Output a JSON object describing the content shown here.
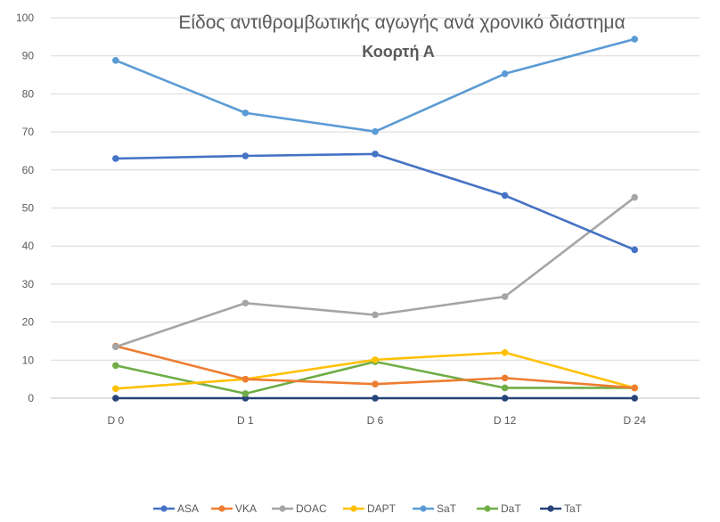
{
  "chart_data": {
    "type": "line",
    "title": "Είδος αντιθρομβωτικής αγωγής ανά χρονικό διάστημα",
    "subtitle": "Κοορτή Α",
    "categories": [
      "D 0",
      "D 1",
      "D 6",
      "D 12",
      "D 24"
    ],
    "ylim": [
      0,
      100
    ],
    "yticks": [
      0,
      10,
      20,
      30,
      40,
      50,
      60,
      70,
      80,
      90,
      100
    ],
    "grid": true,
    "legend": "bottom",
    "series": [
      {
        "name": "ASA",
        "color": "#4472C4",
        "values": [
          63,
          63.7,
          64.2,
          53.3,
          39
        ]
      },
      {
        "name": "VKA",
        "color": "#ED7D31",
        "values": [
          13.7,
          5,
          3.7,
          5.3,
          2.7
        ]
      },
      {
        "name": "DOAC",
        "color": "#A5A5A5",
        "values": [
          13.5,
          25,
          21.9,
          26.7,
          52.8
        ]
      },
      {
        "name": "DAPT",
        "color": "#FFC000",
        "values": [
          2.5,
          5,
          10.1,
          12,
          2.7
        ]
      },
      {
        "name": "SaT",
        "color": "#5B9BD5",
        "values": [
          88.8,
          75,
          70.1,
          85.3,
          94.4
        ]
      },
      {
        "name": "DaT",
        "color": "#70AD47",
        "values": [
          8.6,
          1.2,
          9.6,
          2.7,
          2.7
        ]
      },
      {
        "name": "TaT",
        "color": "#264478",
        "values": [
          0,
          0,
          0,
          0,
          0
        ]
      }
    ]
  }
}
